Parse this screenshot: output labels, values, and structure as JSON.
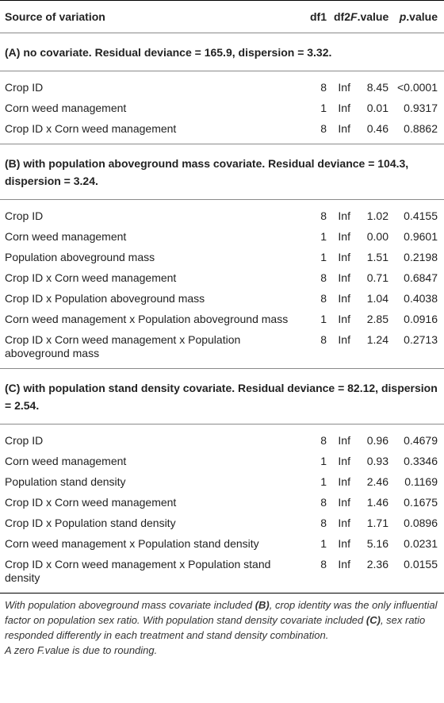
{
  "header": {
    "source": "Source of variation",
    "df1": "df1",
    "df2": "df2",
    "fvalue_italic": "F",
    "fvalue_rest": ".value",
    "pvalue_italic": "p",
    "pvalue_rest": ".value"
  },
  "sections": [
    {
      "title": "(A) no covariate. Residual deviance = 165.9, dispersion = 3.32.",
      "rows": [
        {
          "source": "Crop ID",
          "df1": "8",
          "df2": "Inf",
          "f": "8.45",
          "p": "<0.0001"
        },
        {
          "source": "Corn weed management",
          "df1": "1",
          "df2": "Inf",
          "f": "0.01",
          "p": "0.9317"
        },
        {
          "source": "Crop ID x Corn weed management",
          "df1": "8",
          "df2": "Inf",
          "f": "0.46",
          "p": "0.8862"
        }
      ]
    },
    {
      "title": "(B) with population aboveground mass covariate. Residual deviance = 104.3, dispersion = 3.24.",
      "rows": [
        {
          "source": "Crop ID",
          "df1": "8",
          "df2": "Inf",
          "f": "1.02",
          "p": "0.4155"
        },
        {
          "source": "Corn weed management",
          "df1": "1",
          "df2": "Inf",
          "f": "0.00",
          "p": "0.9601"
        },
        {
          "source": "Population aboveground mass",
          "df1": "1",
          "df2": "Inf",
          "f": "1.51",
          "p": "0.2198"
        },
        {
          "source": "Crop ID x Corn weed management",
          "df1": "8",
          "df2": "Inf",
          "f": "0.71",
          "p": "0.6847"
        },
        {
          "source": "Crop ID x Population aboveground mass",
          "df1": "8",
          "df2": "Inf",
          "f": "1.04",
          "p": "0.4038"
        },
        {
          "source": "Corn weed management x Population aboveground mass",
          "df1": "1",
          "df2": "Inf",
          "f": "2.85",
          "p": "0.0916"
        },
        {
          "source": "Crop ID x Corn weed management x Population aboveground mass",
          "df1": "8",
          "df2": "Inf",
          "f": "1.24",
          "p": "0.2713"
        }
      ]
    },
    {
      "title": "(C) with population stand density covariate. Residual deviance = 82.12, dispersion = 2.54.",
      "rows": [
        {
          "source": "Crop ID",
          "df1": "8",
          "df2": "Inf",
          "f": "0.96",
          "p": "0.4679"
        },
        {
          "source": "Corn weed management",
          "df1": "1",
          "df2": "Inf",
          "f": "0.93",
          "p": "0.3346"
        },
        {
          "source": "Population stand density",
          "df1": "1",
          "df2": "Inf",
          "f": "2.46",
          "p": "0.1169"
        },
        {
          "source": "Crop ID x Corn weed management",
          "df1": "8",
          "df2": "Inf",
          "f": "1.46",
          "p": "0.1675"
        },
        {
          "source": "Crop ID x Population stand density",
          "df1": "8",
          "df2": "Inf",
          "f": "1.71",
          "p": "0.0896"
        },
        {
          "source": "Corn weed management x Population stand density",
          "df1": "1",
          "df2": "Inf",
          "f": "5.16",
          "p": "0.0231"
        },
        {
          "source": "Crop ID x Corn weed management x Population stand density",
          "df1": "8",
          "df2": "Inf",
          "f": "2.36",
          "p": "0.0155"
        }
      ]
    }
  ],
  "footnote": {
    "p1_a": "With population aboveground mass covariate included ",
    "p1_b": "(B)",
    "p1_c": ", crop identity was the only influential factor on population sex ratio. With population stand density covariate included ",
    "p1_d": "(C)",
    "p1_e": ", sex ratio responded differently in each treatment and stand density combination.",
    "p2": "A zero F.value is due to rounding."
  }
}
